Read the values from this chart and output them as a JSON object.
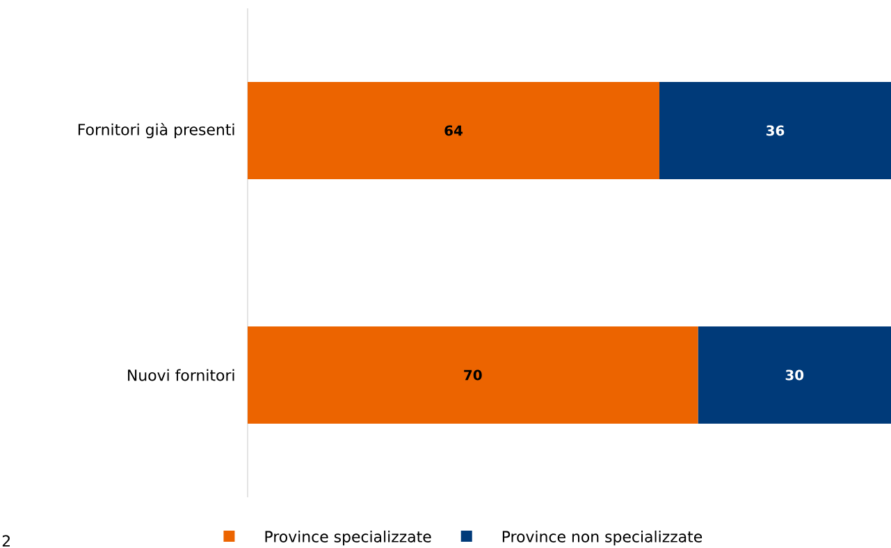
{
  "chart_data": {
    "type": "bar",
    "orientation": "horizontal",
    "stacked": true,
    "data_labels": true,
    "legend": "bottom",
    "categories": [
      "Fornitori già presenti",
      "Nuovi fornitori"
    ],
    "series": [
      {
        "name": "Province specializzate",
        "color": "#ec6400",
        "values": [
          64,
          70
        ]
      },
      {
        "name": "Province non specializzate",
        "color": "#003a79",
        "values": [
          36,
          30
        ]
      }
    ],
    "annotations": [
      "2"
    ]
  }
}
